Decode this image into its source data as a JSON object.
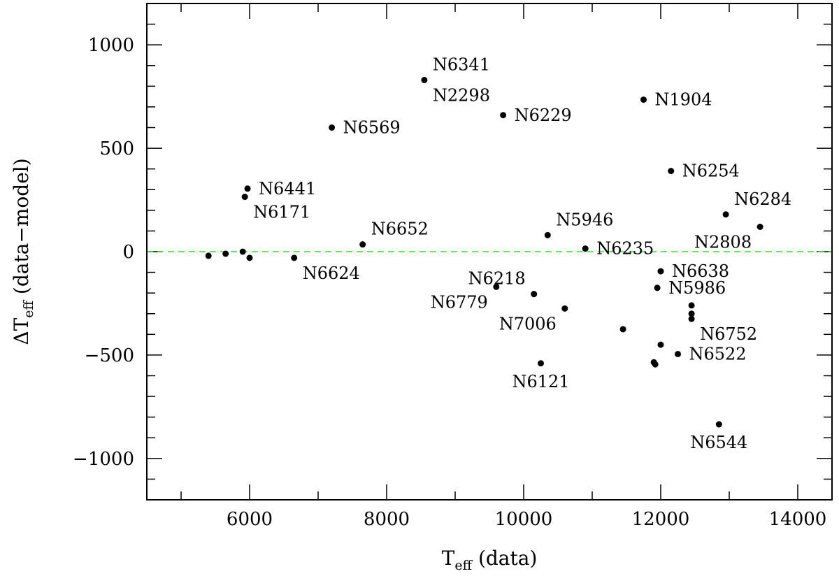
{
  "chart_data": {
    "type": "scatter",
    "xlabel": {
      "main": "T",
      "sub": "eff",
      "rest": " (data)"
    },
    "ylabel": {
      "main": "ΔT",
      "sub": "eff",
      "rest": " (data−model)"
    },
    "xlim": [
      4500,
      14500
    ],
    "ylim": [
      -1200,
      1200
    ],
    "x_ticks_major": [
      6000,
      8000,
      10000,
      12000,
      14000
    ],
    "x_ticks_minor": [
      5000,
      7000,
      9000,
      11000,
      13000
    ],
    "y_ticks_major": [
      -1000,
      -500,
      0,
      500,
      1000
    ],
    "y_ticks_minor": [
      -1100,
      -900,
      -800,
      -700,
      -600,
      -400,
      -300,
      -200,
      -100,
      100,
      200,
      300,
      400,
      600,
      700,
      800,
      900,
      1100
    ],
    "reference_line": {
      "y": 0,
      "style": "dashed",
      "color": "#33dd33"
    },
    "grid": false,
    "series": [
      {
        "points": [
          {
            "x": 8550,
            "y": 830,
            "label": "N6341",
            "label_pos": "above-right"
          },
          {
            "x": 8550,
            "y": 830,
            "label": "N2298",
            "label_pos": "below-right"
          },
          {
            "x": 11750,
            "y": 735,
            "label": "N1904",
            "label_pos": "right"
          },
          {
            "x": 9700,
            "y": 660,
            "label": "N6229",
            "label_pos": "right"
          },
          {
            "x": 7200,
            "y": 600,
            "label": "N6569",
            "label_pos": "right"
          },
          {
            "x": 12150,
            "y": 390,
            "label": "N6254",
            "label_pos": "right"
          },
          {
            "x": 5970,
            "y": 305,
            "label": "N6441",
            "label_pos": "right"
          },
          {
            "x": 5930,
            "y": 265,
            "label": "N6171",
            "label_pos": "below-right"
          },
          {
            "x": 12950,
            "y": 180,
            "label": "N6284",
            "label_pos": "above-right"
          },
          {
            "x": 13450,
            "y": 120,
            "label": "N2808",
            "label_pos": "below-left"
          },
          {
            "x": 10350,
            "y": 80,
            "label": "N5946",
            "label_pos": "above-right"
          },
          {
            "x": 7650,
            "y": 35,
            "label": "N6652",
            "label_pos": "above-right"
          },
          {
            "x": 10900,
            "y": 15,
            "label": "N6235",
            "label_pos": "right"
          },
          {
            "x": 5400,
            "y": -20,
            "label": ""
          },
          {
            "x": 5650,
            "y": -10,
            "label": ""
          },
          {
            "x": 5900,
            "y": 0,
            "label": ""
          },
          {
            "x": 6000,
            "y": -30,
            "label": ""
          },
          {
            "x": 6650,
            "y": -30,
            "label": "N6624",
            "label_pos": "below-right"
          },
          {
            "x": 12000,
            "y": -95,
            "label": "N6638",
            "label_pos": "right"
          },
          {
            "x": 9600,
            "y": -170,
            "label": "N6779",
            "label_pos": "below-left"
          },
          {
            "x": 10150,
            "y": -205,
            "label": "N6218",
            "label_pos": "above-left"
          },
          {
            "x": 11950,
            "y": -175,
            "label": "N5986",
            "label_pos": "right"
          },
          {
            "x": 10600,
            "y": -275,
            "label": "N7006",
            "label_pos": "below-left"
          },
          {
            "x": 12450,
            "y": -260,
            "label": ""
          },
          {
            "x": 12450,
            "y": -300,
            "label": ""
          },
          {
            "x": 12450,
            "y": -325,
            "label": "N6752",
            "label_pos": "below-right"
          },
          {
            "x": 11450,
            "y": -375,
            "label": ""
          },
          {
            "x": 12000,
            "y": -450,
            "label": ""
          },
          {
            "x": 12250,
            "y": -495,
            "label": "N6522",
            "label_pos": "right"
          },
          {
            "x": 11900,
            "y": -535,
            "label": ""
          },
          {
            "x": 11920,
            "y": -545,
            "label": ""
          },
          {
            "x": 10250,
            "y": -540,
            "label": "N6121",
            "label_pos": "below"
          },
          {
            "x": 12850,
            "y": -835,
            "label": "N6544",
            "label_pos": "below"
          }
        ]
      }
    ]
  }
}
